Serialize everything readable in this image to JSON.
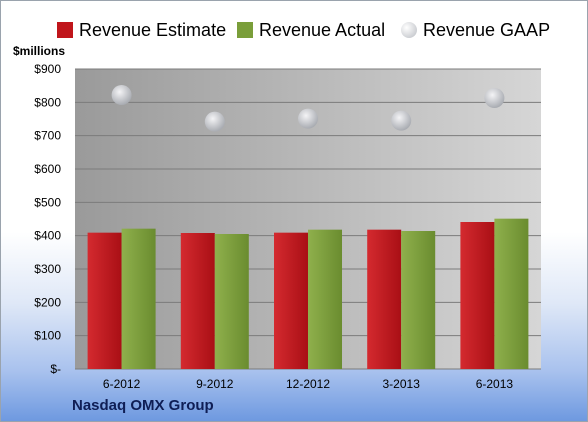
{
  "chart_data": {
    "type": "bar",
    "categories": [
      "6-2012",
      "9-2012",
      "12-2012",
      "3-2013",
      "6-2013"
    ],
    "series": [
      {
        "name": "Revenue Estimate",
        "kind": "bar",
        "color": "#c0151b",
        "values": [
          409,
          408,
          409,
          418,
          441
        ]
      },
      {
        "name": "Revenue Actual",
        "kind": "bar",
        "color": "#7a9e3a",
        "values": [
          421,
          405,
          418,
          414,
          451
        ]
      },
      {
        "name": "Revenue GAAP",
        "kind": "scatter",
        "color": "#c9cbcf",
        "values": [
          822,
          742,
          751,
          745,
          813
        ]
      }
    ],
    "ylabel": "$millions",
    "ylim": [
      0,
      900
    ],
    "yticks": [
      0,
      100,
      200,
      300,
      400,
      500,
      600,
      700,
      800,
      900
    ],
    "ytick_labels": [
      "$-",
      "$100",
      "$200",
      "$300",
      "$400",
      "$500",
      "$600",
      "$700",
      "$800",
      "$900"
    ],
    "grid": true,
    "legend_position": "top",
    "footer": "Nasdaq OMX Group"
  }
}
